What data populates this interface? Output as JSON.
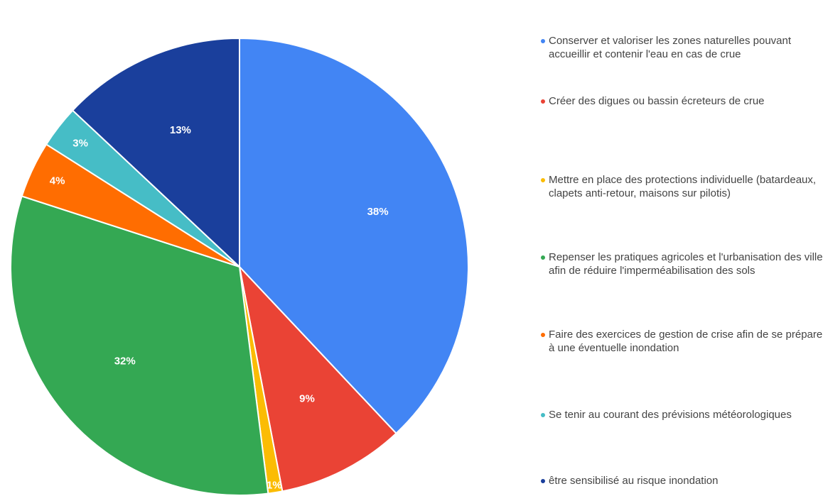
{
  "chart_data": {
    "type": "pie",
    "categories": [
      "Conserver et valoriser les zones naturelles pouvant accueillir et contenir l'eau en cas de crue",
      "Créer des digues ou bassin écreteurs de crue",
      "Mettre en place des protections individuelle (batardeaux, clapets anti-retour, maisons sur pilotis)",
      "Repenser les pratiques agricoles et l'urbanisation des villes afin de réduire l'imperméabilisation des sols",
      "Faire des exercices de gestion de crise afin de se préparer à une éventuelle inondation",
      "Se tenir au courant des prévisions météorologiques",
      "être sensibilisé au risque inondation"
    ],
    "values": [
      38,
      9,
      1,
      32,
      4,
      3,
      13
    ],
    "value_labels": [
      "38%",
      "9%",
      "1%",
      "32%",
      "4%",
      "3%",
      "13%"
    ],
    "colors": [
      "#4285f4",
      "#ea4335",
      "#fbbc04",
      "#34a853",
      "#ff6d01",
      "#46bdc6",
      "#1a3f9c"
    ],
    "legend": "right"
  }
}
